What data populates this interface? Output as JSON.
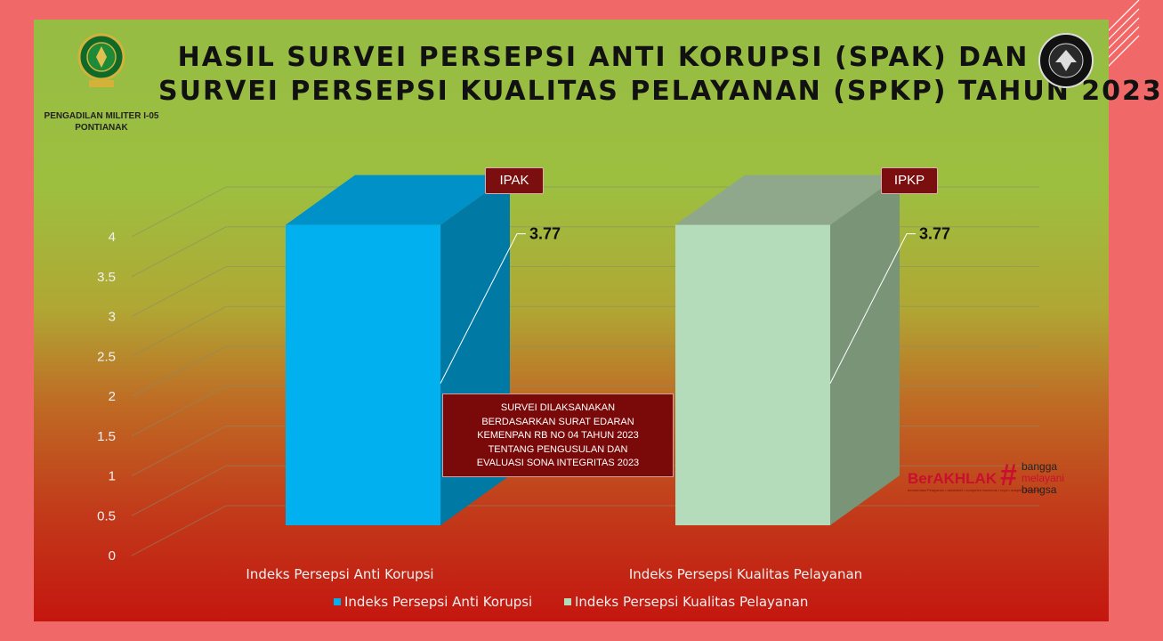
{
  "slide": {
    "title_line1": "HASIL SURVEI PERSEPSI ANTI KORUPSI (SPAK) DAN",
    "title_line2": "SURVEI PERSEPSI KUALITAS PELAYANAN (SPKP) TAHUN 2023",
    "org_line1": "PENGADILAN MILITER I-05",
    "org_line2": "PONTIANAK",
    "note_lines": [
      "SURVEI DILAKSANAKAN",
      "BERDASARKAN SURAT EDARAN",
      "KEMENPAN RB NO 04 TAHUN 2023",
      "TENTANG PENGUSULAN DAN",
      "EVALUASI SONA INTEGRITAS 2023"
    ],
    "brand": {
      "name": "BerAKHLAK",
      "tagline": "berorientasi Pelayanan • akuntabel • kompeten harmonis • loyal • adaptif • kolaboratif",
      "hash": "#",
      "slogan": [
        "bangga",
        "melayani",
        "bangsa"
      ]
    }
  },
  "chart_data": {
    "type": "bar",
    "categories": [
      "Indeks Persepsi Anti Korupsi",
      "Indeks Persepsi Kualitas Pelayanan"
    ],
    "series": [
      {
        "name": "Indeks Persepsi Anti Korupsi",
        "values": [
          3.77,
          null
        ]
      },
      {
        "name": "Indeks Persepsi Kualitas Pelayanan",
        "values": [
          null,
          3.77
        ]
      }
    ],
    "bar_tags": [
      "IPAK",
      "IPKP"
    ],
    "data_labels": [
      "3.77",
      "3.77"
    ],
    "ylim": [
      0,
      4
    ],
    "y_ticks": [
      "0",
      "0.5",
      "1",
      "1.5",
      "2",
      "2.5",
      "3",
      "3.5",
      "4"
    ],
    "grid": true,
    "legend_position": "bottom",
    "colors": {
      "bar1_front": "#00b0ef",
      "bar1_side": "#0079a4",
      "bar1_top": "#0091c8",
      "bar2_front": "#b5dcba",
      "bar2_side": "#7a9478",
      "bar2_top": "#8fa88b",
      "tag_bg": "#7b0e0e"
    }
  }
}
